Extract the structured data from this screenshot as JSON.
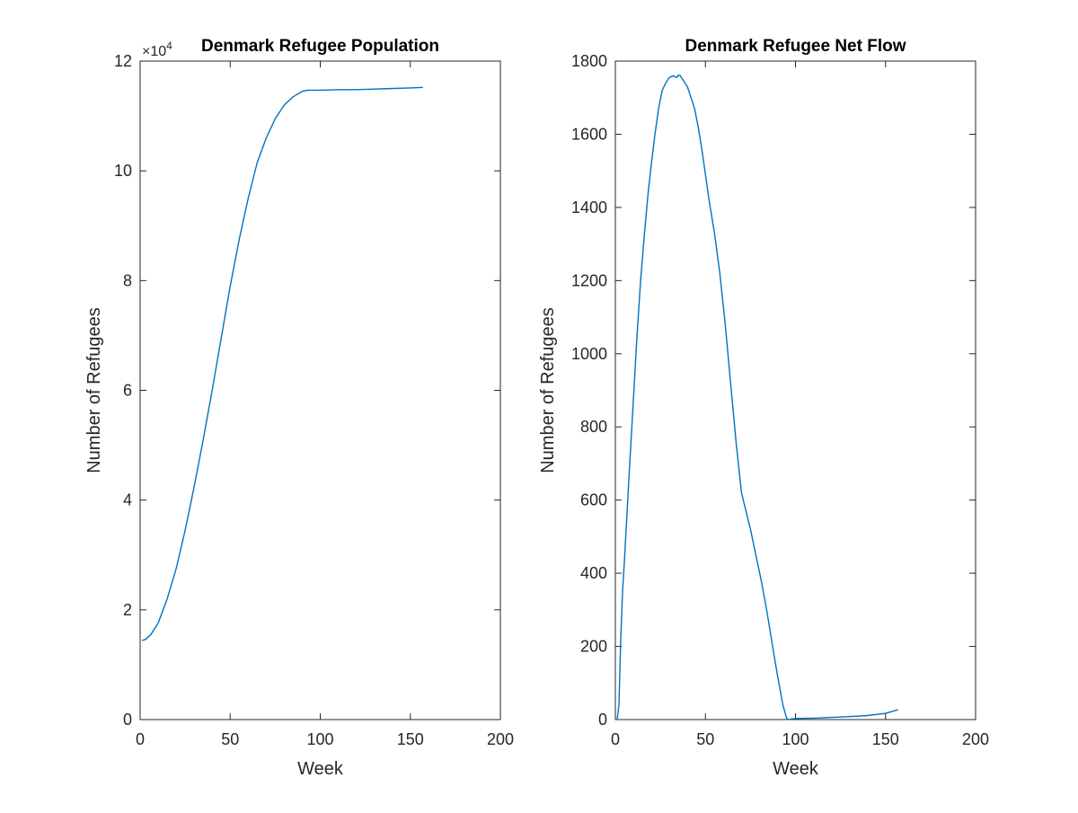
{
  "chart_data": [
    {
      "type": "line",
      "title": "Denmark Refugee Population",
      "xlabel": "Week",
      "ylabel": "Number of Refugees",
      "xlim": [
        0,
        200
      ],
      "ylim": [
        0,
        12
      ],
      "xticks": [
        "0",
        "50",
        "100",
        "150",
        "200"
      ],
      "yticks": [
        "0",
        "2",
        "4",
        "6",
        "8",
        "10",
        "12"
      ],
      "y_exponent_label": "×10",
      "y_exponent_power": "4",
      "grid": false,
      "color": "#0072BD",
      "series": [
        {
          "x": [
            1,
            3,
            6,
            10,
            15,
            20,
            25,
            30,
            35,
            40,
            45,
            50,
            55,
            60,
            65,
            70,
            75,
            80,
            85,
            90,
            93,
            96,
            100,
            110,
            120,
            130,
            140,
            150,
            157
          ],
          "values": [
            1.44,
            1.46,
            1.55,
            1.76,
            2.2,
            2.75,
            3.45,
            4.25,
            5.1,
            6.0,
            6.95,
            7.9,
            8.75,
            9.5,
            10.15,
            10.6,
            10.95,
            11.2,
            11.35,
            11.45,
            11.47,
            11.47,
            11.47,
            11.48,
            11.48,
            11.49,
            11.5,
            11.51,
            11.52
          ]
        }
      ]
    },
    {
      "type": "line",
      "title": "Denmark Refugee Net Flow",
      "xlabel": "Week",
      "ylabel": "Number of Refugees",
      "xlim": [
        0,
        200
      ],
      "ylim": [
        0,
        1800
      ],
      "xticks": [
        "0",
        "50",
        "100",
        "150",
        "200"
      ],
      "yticks": [
        "0",
        "200",
        "400",
        "600",
        "800",
        "1000",
        "1200",
        "1400",
        "1600",
        "1800"
      ],
      "grid": false,
      "color": "#0072BD",
      "series": [
        {
          "x": [
            1,
            2,
            3,
            4,
            5,
            6,
            7,
            8,
            10,
            12,
            14,
            16,
            18,
            20,
            22,
            24,
            26,
            28,
            30,
            32,
            34,
            35,
            36,
            38,
            40,
            42,
            44,
            46,
            48,
            50,
            52,
            55,
            58,
            61,
            64,
            67,
            70,
            72,
            75,
            78,
            81,
            84,
            87,
            90,
            93,
            95,
            96,
            98,
            100,
            110,
            120,
            130,
            140,
            150,
            157
          ],
          "values": [
            0,
            40,
            220,
            350,
            430,
            520,
            610,
            700,
            870,
            1050,
            1200,
            1320,
            1430,
            1520,
            1600,
            1670,
            1720,
            1740,
            1755,
            1760,
            1755,
            1762,
            1760,
            1745,
            1730,
            1700,
            1670,
            1620,
            1560,
            1490,
            1420,
            1330,
            1220,
            1080,
            920,
            760,
            620,
            580,
            520,
            450,
            380,
            300,
            210,
            120,
            40,
            5,
            0,
            2,
            3,
            4,
            6,
            8,
            11,
            17,
            27
          ]
        }
      ]
    }
  ]
}
